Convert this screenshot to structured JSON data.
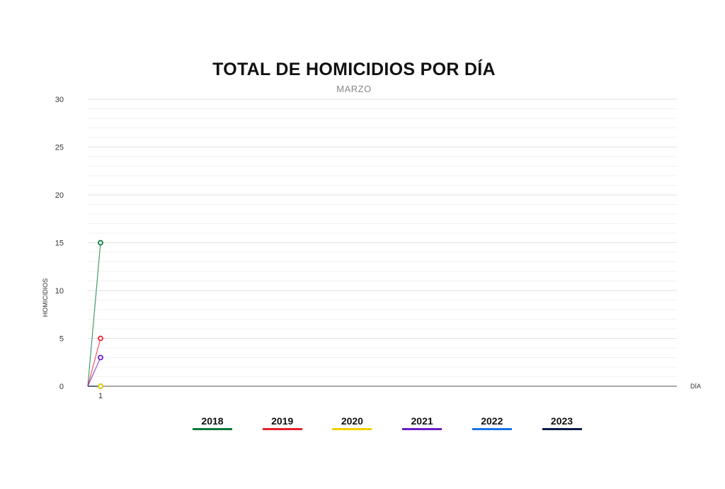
{
  "chart_data": {
    "type": "line",
    "title": "TOTAL DE HOMICIDIOS POR DÍA",
    "subtitle": "MARZO",
    "xlabel": "DÍA",
    "ylabel": "HOMICIDIOS",
    "x_ticks": [
      "1"
    ],
    "y_ticks": [
      "0",
      "5",
      "10",
      "15",
      "20",
      "25",
      "30"
    ],
    "ylim": [
      0,
      30
    ],
    "xlim": [
      0,
      31
    ],
    "grid": true,
    "legend_position": "bottom",
    "x": [
      0,
      1
    ],
    "series": [
      {
        "name": "2018",
        "color": "#0a7a3a",
        "values": [
          0,
          15
        ]
      },
      {
        "name": "2019",
        "color": "#e8202a",
        "values": [
          0,
          5
        ]
      },
      {
        "name": "2020",
        "color": "#f0d000",
        "values": [
          0,
          0
        ]
      },
      {
        "name": "2021",
        "color": "#6a1bc9",
        "values": [
          0,
          3
        ]
      },
      {
        "name": "2022",
        "color": "#1a73e8",
        "values": [
          0,
          0
        ]
      },
      {
        "name": "2023",
        "color": "#0c1a4a",
        "values": [
          0,
          0
        ]
      }
    ]
  }
}
